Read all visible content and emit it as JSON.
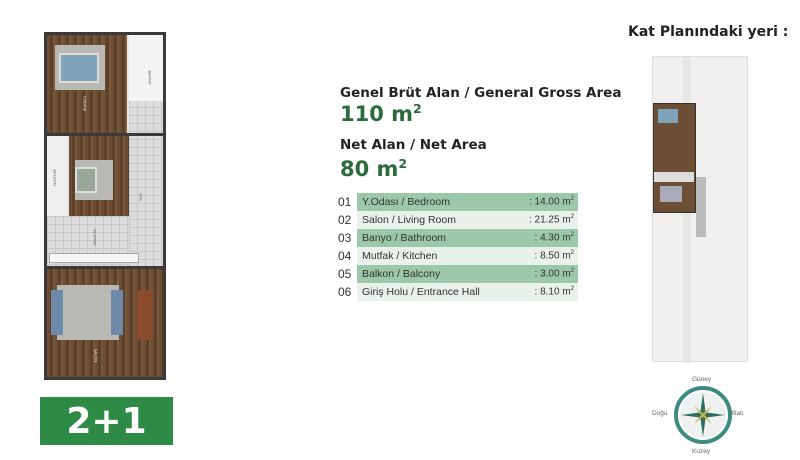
{
  "plan": {
    "room_labels": [
      "BANYO",
      "BALKON",
      "HOL",
      "MUTFAK",
      "SALON",
      "Y.ODASI"
    ],
    "unit_type": "2+1"
  },
  "areas": {
    "gross_label": "Genel Brüt Alan / General Gross Area",
    "gross_value": "110 m",
    "net_label": "Net Alan / Net Area",
    "net_value": "80 m",
    "unit_sup": "2"
  },
  "rooms": [
    {
      "no": "01",
      "name": "Y.Odası / Bedroom",
      "area": ": 14.00 m"
    },
    {
      "no": "02",
      "name": "Salon / Living Room",
      "area": ": 21.25 m"
    },
    {
      "no": "03",
      "name": "Banyo / Bathroom",
      "area": ": 4.30 m"
    },
    {
      "no": "04",
      "name": "Mutfak / Kitchen",
      "area": ": 8.50 m"
    },
    {
      "no": "05",
      "name": "Balkon / Balcony",
      "area": ": 3.00 m"
    },
    {
      "no": "06",
      "name": "Giriş Holu / Entrance Hall",
      "area": ": 8.10 m"
    }
  ],
  "location": {
    "title": "Kat Planındaki yeri :",
    "compass": {
      "north": "Kuzey",
      "south": "Güney",
      "east": "Doğu",
      "west": "Batı"
    }
  },
  "colors": {
    "brand_green": "#2e8b45",
    "text_green": "#2b6b3e",
    "row_dark": "#9cc7a8",
    "row_light": "#e9f1eb"
  }
}
